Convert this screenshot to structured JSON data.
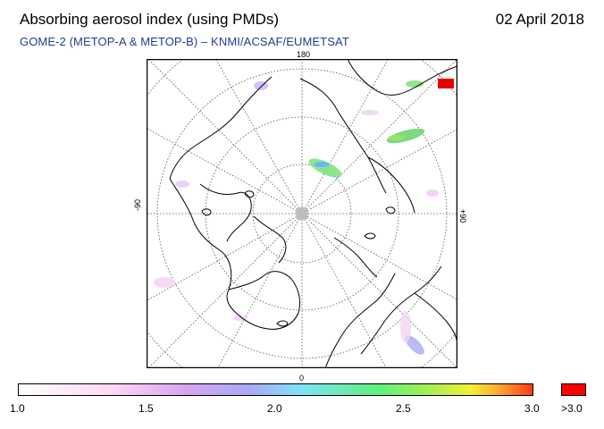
{
  "header": {
    "title": "Absorbing aerosol index (using PMDs)",
    "date": "02 April 2018",
    "subtitle": "GOME-2 (METOP-A & METOP-B)  –  KNMI/ACSAF/EUMETSAT"
  },
  "map": {
    "labels": {
      "top": "180",
      "bottom": "0",
      "left": "-90",
      "right": "+90"
    }
  },
  "colorbar": {
    "ticks": [
      "1.0",
      "1.5",
      "2.0",
      "2.5",
      "3.0"
    ],
    "overflow_label": ">3.0",
    "overflow_color": "#ff0000"
  }
}
